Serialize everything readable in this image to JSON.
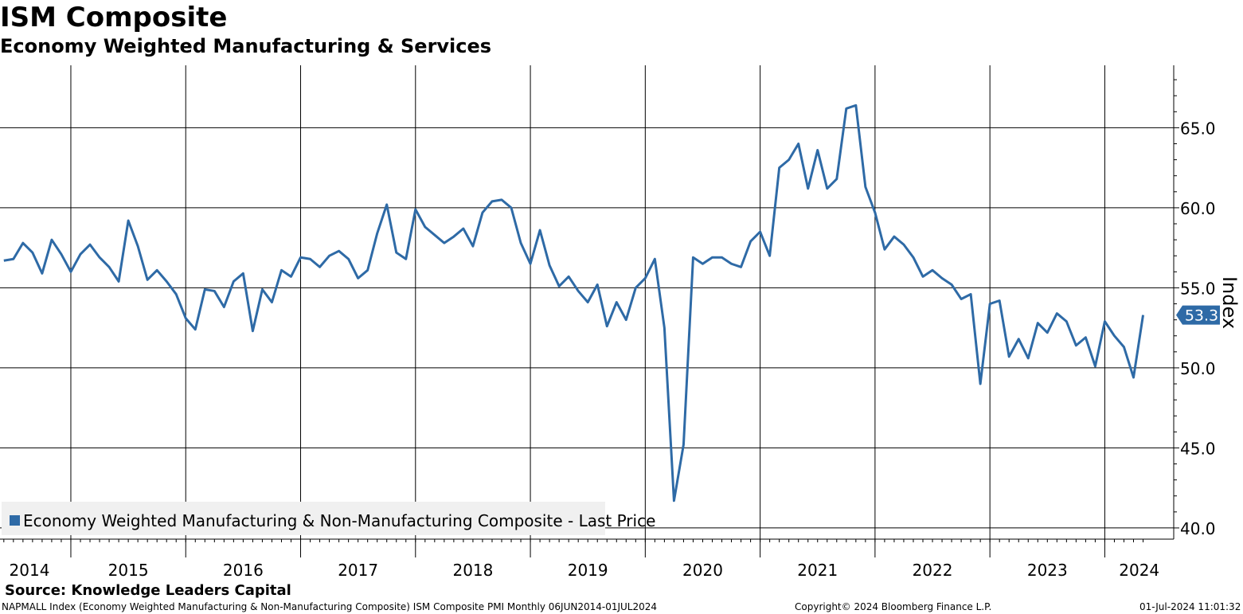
{
  "header": {
    "title": "ISM Composite",
    "subtitle": "Economy Weighted Manufacturing & Services"
  },
  "footer": {
    "source": "Source: Knowledge Leaders Capital",
    "ticker_info": "NAPMALL Index (Economy Weighted Manufacturing & Non-Manufacturing Composite) ISM Composite PMI  Monthly 06JUN2014-01JUL2024",
    "copyright": "Copyright© 2024 Bloomberg Finance L.P.",
    "timestamp": "01-Jul-2024 11:01:32"
  },
  "colors": {
    "series": "#2E6AA6",
    "grid": "#000000",
    "legend_bg": "#F0F0F0",
    "label_text": "#FFFFFF"
  },
  "chart_data": {
    "type": "line",
    "title": "ISM Composite",
    "subtitle": "Economy Weighted Manufacturing & Services",
    "ylabel": "Index",
    "ylim": [
      39.3,
      68.9
    ],
    "yticks": [
      40.0,
      45.0,
      50.0,
      55.0,
      60.0,
      65.0
    ],
    "ytick_labels": [
      "40.0",
      "45.0",
      "50.0",
      "55.0",
      "60.0",
      "65.0"
    ],
    "x_start": "2014-06",
    "x_end": "2024-06",
    "xlim_months": [
      -0.4,
      122.2
    ],
    "year_labels": [
      "2014",
      "2015",
      "2016",
      "2017",
      "2018",
      "2019",
      "2020",
      "2021",
      "2022",
      "2023",
      "2024"
    ],
    "legend": [
      "Economy Weighted Manufacturing & Non-Manufacturing Composite - Last Price"
    ],
    "legend_position": "bottom-left",
    "last_value_label": "53.3",
    "series": [
      {
        "name": "Economy Weighted Manufacturing & Non-Manufacturing Composite - Last Price",
        "values": [
          56.7,
          56.8,
          57.8,
          57.2,
          55.9,
          58.0,
          57.1,
          56.0,
          57.1,
          57.7,
          56.9,
          56.3,
          55.4,
          59.2,
          57.6,
          55.5,
          56.1,
          55.4,
          54.6,
          53.1,
          52.4,
          54.9,
          54.8,
          53.8,
          55.4,
          55.9,
          52.3,
          54.9,
          54.1,
          56.1,
          55.7,
          56.9,
          56.8,
          56.3,
          57.0,
          57.3,
          56.8,
          55.6,
          56.1,
          58.4,
          60.2,
          57.2,
          56.8,
          59.9,
          58.8,
          58.3,
          57.8,
          58.2,
          58.7,
          57.6,
          59.7,
          60.4,
          60.5,
          60.0,
          57.8,
          56.5,
          58.6,
          56.4,
          55.1,
          55.7,
          54.8,
          54.1,
          55.2,
          52.6,
          54.1,
          53.0,
          55.0,
          55.6,
          56.8,
          52.5,
          41.7,
          45.2,
          56.9,
          56.5,
          56.9,
          56.9,
          56.5,
          56.3,
          57.9,
          58.5,
          57.0,
          62.5,
          63.0,
          64.0,
          61.2,
          63.6,
          61.2,
          61.8,
          66.2,
          66.4,
          61.3,
          59.7,
          57.4,
          58.2,
          57.7,
          56.9,
          55.7,
          56.1,
          55.6,
          55.2,
          54.3,
          54.6,
          49.0,
          54.0,
          54.2,
          50.7,
          51.8,
          50.6,
          52.8,
          52.2,
          53.4,
          52.9,
          51.4,
          51.9,
          50.1,
          52.9,
          52.0,
          51.3,
          49.4,
          53.3
        ]
      }
    ]
  }
}
